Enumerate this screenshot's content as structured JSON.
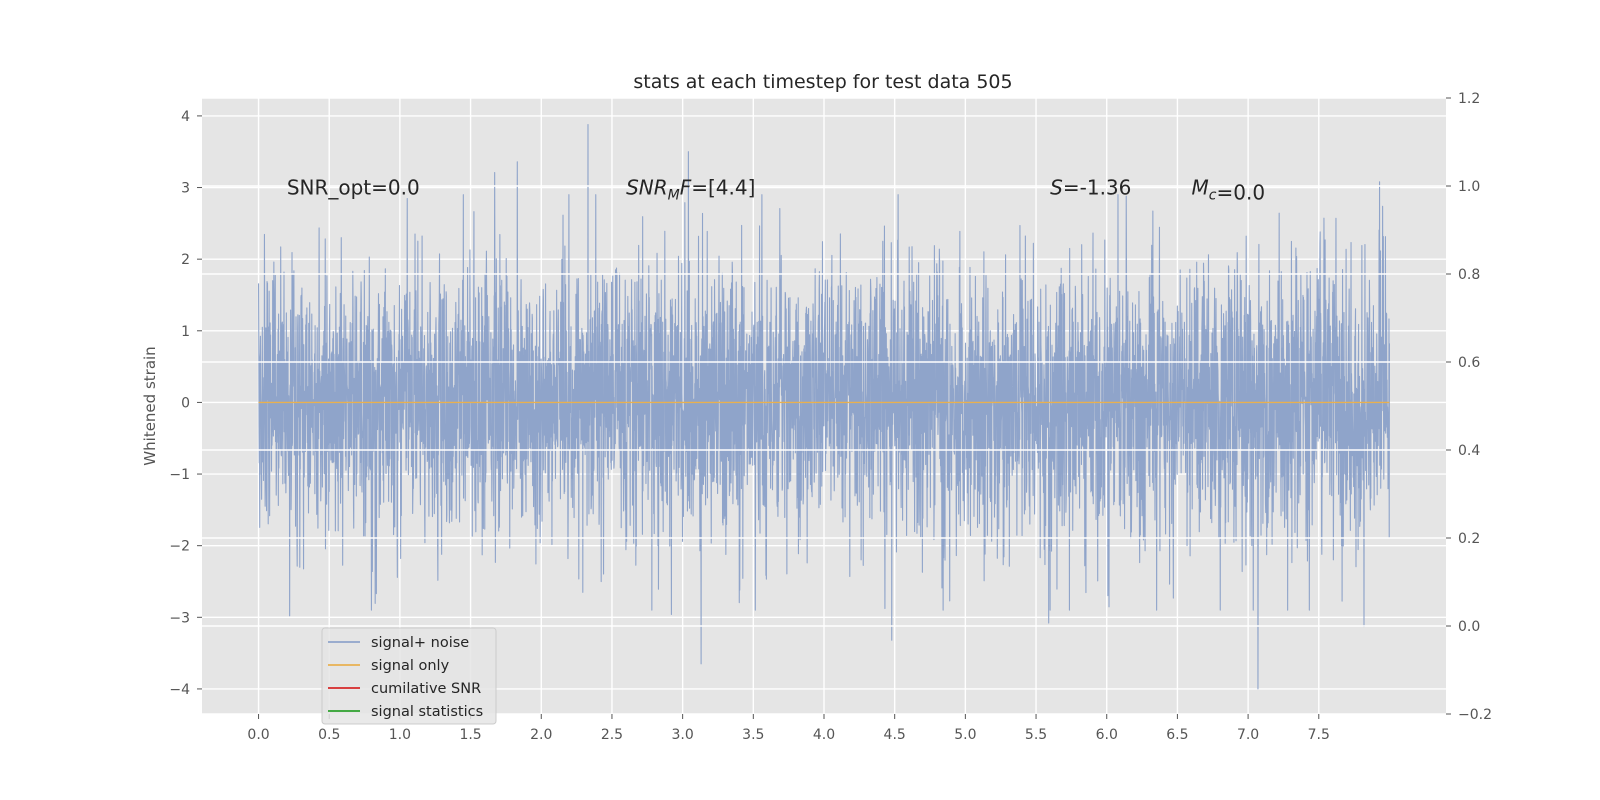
{
  "chart_data": {
    "type": "line",
    "title": "stats at each timestep for test data 505",
    "xlabel": "",
    "ylabel": "Whitened strain",
    "xlim": [
      -0.4,
      8.4
    ],
    "ylim": [
      -4.35,
      4.25
    ],
    "y2lim": [
      -0.2,
      1.2
    ],
    "xticks": [
      "0.0",
      "0.5",
      "1.0",
      "1.5",
      "2.0",
      "2.5",
      "3.0",
      "3.5",
      "4.0",
      "4.5",
      "5.0",
      "5.5",
      "6.0",
      "6.5",
      "7.0",
      "7.5"
    ],
    "xtick_values": [
      0.0,
      0.5,
      1.0,
      1.5,
      2.0,
      2.5,
      3.0,
      3.5,
      4.0,
      4.5,
      5.0,
      5.5,
      6.0,
      6.5,
      7.0,
      7.5
    ],
    "yticks": [
      "4",
      "3",
      "2",
      "1",
      "0",
      "−1",
      "−2",
      "−3",
      "−4"
    ],
    "ytick_values": [
      4,
      3,
      2,
      1,
      0,
      -1,
      -2,
      -3,
      -4
    ],
    "y2ticks": [
      "1.2",
      "1.0",
      "0.8",
      "0.6",
      "0.4",
      "0.2",
      "0.0",
      "−0.2"
    ],
    "y2tick_values": [
      1.2,
      1.0,
      0.8,
      0.6,
      0.4,
      0.2,
      0.0,
      -0.2
    ],
    "grid": true,
    "series": [
      {
        "name": "signal+ noise",
        "color": "#8fa4ca",
        "kind": "noise",
        "x_range": [
          0.0,
          8.0
        ],
        "seed": 505,
        "extremes": [
          {
            "x": 2.33,
            "y": 3.88
          },
          {
            "x": 3.04,
            "y": 3.5
          },
          {
            "x": 1.83,
            "y": 3.36
          },
          {
            "x": 1.67,
            "y": 3.21
          },
          {
            "x": 7.93,
            "y": 3.08
          },
          {
            "x": 7.07,
            "y": -4.0
          },
          {
            "x": 3.13,
            "y": -3.65
          },
          {
            "x": 4.48,
            "y": -3.32
          },
          {
            "x": 7.82,
            "y": -3.13
          },
          {
            "x": 5.59,
            "y": -3.08
          },
          {
            "x": 0.22,
            "y": -2.98
          },
          {
            "x": 2.92,
            "y": -2.96
          }
        ]
      },
      {
        "name": "signal only",
        "color": "#e8b050",
        "kind": "flat",
        "x": [
          0.0,
          8.0
        ],
        "y": [
          0.0,
          0.0
        ]
      },
      {
        "name": "cumilative SNR",
        "color": "#d62728",
        "kind": "none"
      },
      {
        "name": "signal statistics",
        "color": "#2ca02c",
        "kind": "none"
      }
    ],
    "annotations": [
      {
        "id": "snr-opt",
        "text": "SNR_opt=0.0",
        "x": 0.2,
        "y": 3.0
      },
      {
        "id": "snr-mf",
        "main": "SNR",
        "sub": "M",
        "tail": "F",
        "value": "=[4.4]",
        "x": 2.6,
        "y": 3.0
      },
      {
        "id": "skew",
        "main": "S",
        "value": "=-1.36",
        "x": 5.6,
        "y": 3.0
      },
      {
        "id": "chirp-mass",
        "main": "M",
        "sub": "c",
        "value": "=0.0",
        "x": 6.6,
        "y": 3.0
      }
    ],
    "legend_position": "lower-left"
  }
}
